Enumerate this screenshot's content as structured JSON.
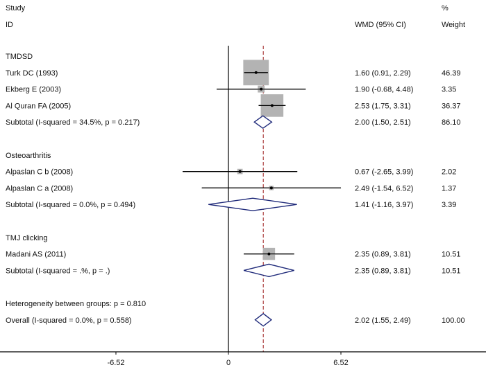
{
  "chart_data": {
    "type": "forest",
    "headers": {
      "study_top": "Study",
      "study_bottom": "ID",
      "effect": "WMD (95% CI)",
      "weight_top": "%",
      "weight_bottom": "Weight"
    },
    "rows": [
      {
        "kind": "group",
        "label": "TMDSD"
      },
      {
        "kind": "study",
        "label": "Turk DC (1993)",
        "est": 1.6,
        "lo": 0.91,
        "hi": 2.29,
        "ci_text": "1.60 (0.91, 2.29)",
        "weight": 46.39,
        "weight_text": "46.39"
      },
      {
        "kind": "study",
        "label": "Ekberg E (2003)",
        "est": 1.9,
        "lo": -0.68,
        "hi": 4.48,
        "ci_text": "1.90 (-0.68, 4.48)",
        "weight": 3.35,
        "weight_text": "3.35"
      },
      {
        "kind": "study",
        "label": "Al Quran FA (2005)",
        "est": 2.53,
        "lo": 1.75,
        "hi": 3.31,
        "ci_text": "2.53 (1.75, 3.31)",
        "weight": 36.37,
        "weight_text": "36.37"
      },
      {
        "kind": "subtotal",
        "label": "Subtotal  (I-squared = 34.5%, p = 0.217)",
        "est": 2.0,
        "lo": 1.5,
        "hi": 2.51,
        "ci_text": "2.00 (1.50, 2.51)",
        "weight_text": "86.10"
      },
      {
        "kind": "blank"
      },
      {
        "kind": "group",
        "label": "Osteoarthritis"
      },
      {
        "kind": "study",
        "label": "Alpaslan C b (2008)",
        "est": 0.67,
        "lo": -2.65,
        "hi": 3.99,
        "ci_text": "0.67 (-2.65, 3.99)",
        "weight": 2.02,
        "weight_text": "2.02"
      },
      {
        "kind": "study",
        "label": "Alpaslan C a (2008)",
        "est": 2.49,
        "lo": -1.54,
        "hi": 6.52,
        "ci_text": "2.49 (-1.54, 6.52)",
        "weight": 1.37,
        "weight_text": "1.37"
      },
      {
        "kind": "subtotal",
        "label": "Subtotal  (I-squared = 0.0%, p = 0.494)",
        "est": 1.41,
        "lo": -1.16,
        "hi": 3.97,
        "ci_text": "1.41 (-1.16, 3.97)",
        "weight_text": "3.39"
      },
      {
        "kind": "blank"
      },
      {
        "kind": "group",
        "label": "TMJ clicking"
      },
      {
        "kind": "study",
        "label": "Madani AS (2011)",
        "est": 2.35,
        "lo": 0.89,
        "hi": 3.81,
        "ci_text": "2.35 (0.89, 3.81)",
        "weight": 10.51,
        "weight_text": "10.51"
      },
      {
        "kind": "subtotal",
        "label": "Subtotal  (I-squared = .%, p = .)",
        "est": 2.35,
        "lo": 0.89,
        "hi": 3.81,
        "ci_text": "2.35 (0.89, 3.81)",
        "weight_text": "10.51"
      },
      {
        "kind": "blank"
      },
      {
        "kind": "text",
        "label": "Heterogeneity between groups: p = 0.810"
      },
      {
        "kind": "overall",
        "label": "Overall  (I-squared = 0.0%, p = 0.558)",
        "est": 2.02,
        "lo": 1.55,
        "hi": 2.49,
        "ci_text": "2.02 (1.55, 2.49)",
        "weight_text": "100.00"
      }
    ],
    "x_axis": {
      "ticks": [
        -6.52,
        0,
        6.52
      ],
      "tick_labels": [
        "-6.52",
        "0",
        "6.52"
      ],
      "null_value": 0
    },
    "reference_line": 2.02,
    "colors": {
      "box": "#b3b3b3",
      "diamond": "#1f2a7a",
      "reference": "#9b1b1b",
      "line": "#000000"
    }
  }
}
